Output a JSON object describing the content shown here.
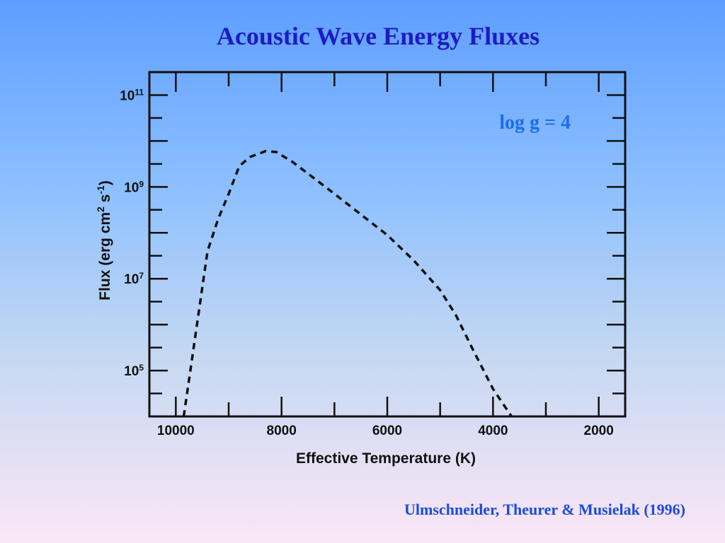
{
  "slide": {
    "title": "Acoustic Wave Energy Fluxes",
    "citation": "Ulmschneider, Theurer & Musielak (1996)"
  },
  "chart_data": {
    "type": "line",
    "xlabel": "Effective Temperature (K)",
    "ylabel_parts": {
      "base": "Flux (erg cm",
      "exp1": "2",
      "mid": " s",
      "exp2": "-1",
      "end": ")"
    },
    "annotation": "log g = 4",
    "x_axis": {
      "reversed": true,
      "lim": [
        10500,
        1500
      ]
    },
    "y_axis": {
      "scale": "log",
      "lim_exp": [
        4,
        11.5
      ]
    },
    "x_ticks": [
      {
        "value": 10000,
        "label": "10000"
      },
      {
        "value": 8000,
        "label": "8000"
      },
      {
        "value": 6000,
        "label": "6000"
      },
      {
        "value": 4000,
        "label": "4000"
      },
      {
        "value": 2000,
        "label": "2000"
      }
    ],
    "y_ticks": [
      {
        "exp": 5,
        "base": "10",
        "sup": "5"
      },
      {
        "exp": 7,
        "base": "10",
        "sup": "7"
      },
      {
        "exp": 9,
        "base": "10",
        "sup": "9"
      },
      {
        "exp": 11,
        "base": "10",
        "sup": "11"
      }
    ],
    "series": [
      {
        "style": "dashed",
        "color": "#000000",
        "points": [
          {
            "x": 9850,
            "y": 4.0
          },
          {
            "x": 9750,
            "y": 4.8
          },
          {
            "x": 9600,
            "y": 6.0
          },
          {
            "x": 9400,
            "y": 7.6
          },
          {
            "x": 9200,
            "y": 8.3
          },
          {
            "x": 9000,
            "y": 8.85
          },
          {
            "x": 8800,
            "y": 9.45
          },
          {
            "x": 8600,
            "y": 9.65
          },
          {
            "x": 8300,
            "y": 9.78
          },
          {
            "x": 8100,
            "y": 9.76
          },
          {
            "x": 7800,
            "y": 9.55
          },
          {
            "x": 7400,
            "y": 9.2
          },
          {
            "x": 7000,
            "y": 8.85
          },
          {
            "x": 6500,
            "y": 8.4
          },
          {
            "x": 6000,
            "y": 7.95
          },
          {
            "x": 5500,
            "y": 7.4
          },
          {
            "x": 5000,
            "y": 6.75
          },
          {
            "x": 4700,
            "y": 6.2
          },
          {
            "x": 4400,
            "y": 5.5
          },
          {
            "x": 4000,
            "y": 4.6
          },
          {
            "x": 3650,
            "y": 4.0
          }
        ]
      }
    ]
  }
}
